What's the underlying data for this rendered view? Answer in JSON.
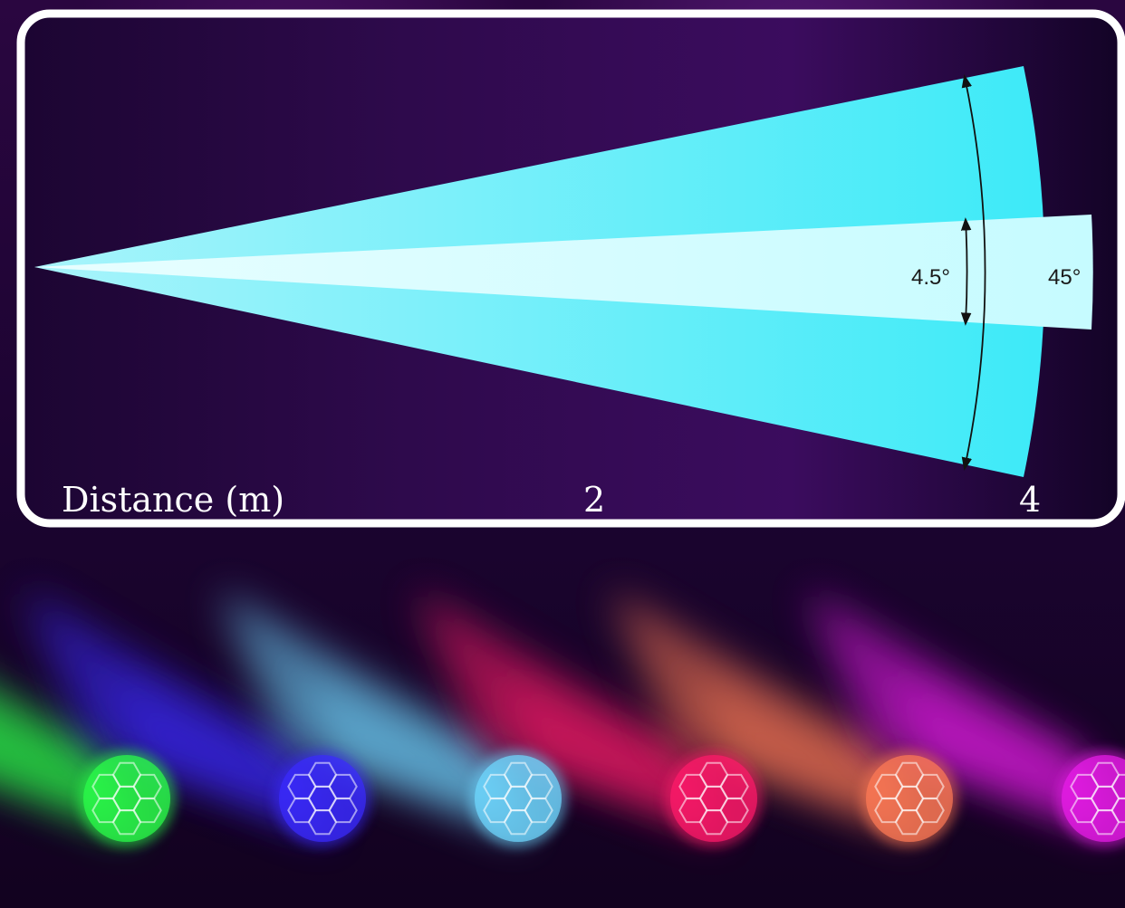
{
  "diagram": {
    "axis_label": "Distance (m)",
    "tick_labels": [
      "2",
      "4"
    ],
    "narrow_angle_label": "4.5°",
    "wide_angle_label": "45°",
    "colors": {
      "frame": "#ffffff",
      "wide_beam": "#45e9f6",
      "narrow_beam": "#c8fbff",
      "panel_background": "#2a0845"
    }
  },
  "lights": {
    "beam_colors": [
      "#2bff4a",
      "#3b2bff",
      "#6fd8ff",
      "#ff1a6a",
      "#ff7a55",
      "#e81ce8"
    ]
  }
}
